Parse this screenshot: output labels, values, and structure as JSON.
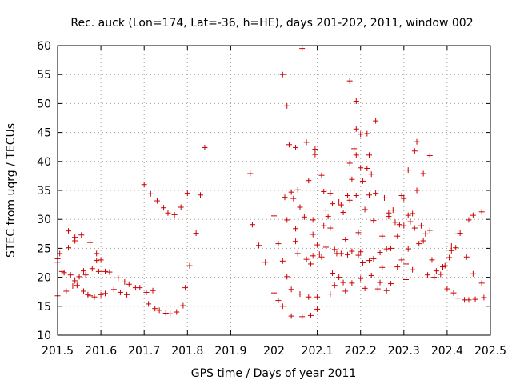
{
  "chart_data": {
    "type": "scatter",
    "title": "Rec. auck (Lon=174, Lat=-36, h=HE), days 201-202, 2011, window 002",
    "xlabel": "GPS time / Days of year 2011",
    "ylabel": "STEC from uqrg / TECUs",
    "xlim": [
      201.5,
      202.5
    ],
    "ylim": [
      10,
      60
    ],
    "xticks": [
      201.5,
      201.6,
      201.7,
      201.8,
      201.9,
      202,
      202.1,
      202.2,
      202.3,
      202.4,
      202.5
    ],
    "xtick_labels": [
      "201.5",
      "201.6",
      "201.7",
      "201.8",
      "201.9",
      "202",
      "202.1",
      "202.2",
      "202.3",
      "202.4",
      "202.5"
    ],
    "yticks": [
      10,
      15,
      20,
      25,
      30,
      35,
      40,
      45,
      50,
      55,
      60
    ],
    "ytick_labels": [
      "10",
      "15",
      "20",
      "25",
      "30",
      "35",
      "40",
      "45",
      "50",
      "55",
      "60"
    ],
    "grid": true,
    "marker": "+",
    "color": "#cc0000",
    "series": [
      {
        "name": "STEC",
        "points": [
          [
            201.5,
            16.8
          ],
          [
            201.5,
            23.2
          ],
          [
            201.5,
            22.6
          ],
          [
            201.505,
            24.1
          ],
          [
            201.51,
            21.0
          ],
          [
            201.515,
            20.8
          ],
          [
            201.52,
            17.6
          ],
          [
            201.525,
            28.0
          ],
          [
            201.525,
            25.1
          ],
          [
            201.53,
            20.4
          ],
          [
            201.535,
            18.5
          ],
          [
            201.54,
            26.9
          ],
          [
            201.54,
            26.3
          ],
          [
            201.54,
            19.4
          ],
          [
            201.545,
            18.6
          ],
          [
            201.55,
            20.1
          ],
          [
            201.555,
            27.3
          ],
          [
            201.56,
            21.1
          ],
          [
            201.56,
            17.6
          ],
          [
            201.565,
            20.4
          ],
          [
            201.57,
            17.0
          ],
          [
            201.575,
            26.0
          ],
          [
            201.575,
            16.8
          ],
          [
            201.58,
            21.5
          ],
          [
            201.585,
            16.6
          ],
          [
            201.59,
            24.1
          ],
          [
            201.59,
            22.9
          ],
          [
            201.595,
            21.0
          ],
          [
            201.6,
            23.0
          ],
          [
            201.6,
            17.0
          ],
          [
            201.61,
            21.0
          ],
          [
            201.61,
            17.2
          ],
          [
            201.62,
            20.9
          ],
          [
            201.63,
            17.9
          ],
          [
            201.64,
            19.9
          ],
          [
            201.645,
            17.4
          ],
          [
            201.655,
            19.2
          ],
          [
            201.66,
            17.0
          ],
          [
            201.665,
            18.8
          ],
          [
            201.68,
            18.2
          ],
          [
            201.69,
            18.2
          ],
          [
            201.7,
            36.0
          ],
          [
            201.705,
            17.4
          ],
          [
            201.71,
            15.4
          ],
          [
            201.715,
            34.4
          ],
          [
            201.72,
            17.7
          ],
          [
            201.725,
            14.6
          ],
          [
            201.73,
            33.2
          ],
          [
            201.735,
            14.3
          ],
          [
            201.745,
            32.0
          ],
          [
            201.75,
            13.8
          ],
          [
            201.755,
            31.1
          ],
          [
            201.76,
            13.7
          ],
          [
            201.77,
            30.8
          ],
          [
            201.775,
            14.0
          ],
          [
            201.785,
            32.1
          ],
          [
            201.79,
            15.1
          ],
          [
            201.795,
            18.2
          ],
          [
            201.8,
            34.5
          ],
          [
            201.805,
            22.0
          ],
          [
            201.82,
            27.6
          ],
          [
            201.83,
            34.2
          ],
          [
            201.84,
            42.4
          ],
          [
            201.945,
            37.9
          ],
          [
            201.95,
            29.1
          ],
          [
            201.965,
            25.5
          ],
          [
            201.98,
            22.6
          ],
          [
            202.0,
            30.6
          ],
          [
            202.0,
            17.3
          ],
          [
            202.01,
            25.8
          ],
          [
            202.01,
            16.0
          ],
          [
            202.02,
            55.0
          ],
          [
            202.02,
            22.8
          ],
          [
            202.02,
            15.0
          ],
          [
            202.025,
            33.8
          ],
          [
            202.03,
            49.6
          ],
          [
            202.03,
            29.9
          ],
          [
            202.03,
            20.1
          ],
          [
            202.035,
            42.9
          ],
          [
            202.04,
            34.7
          ],
          [
            202.04,
            17.9
          ],
          [
            202.04,
            13.3
          ],
          [
            202.045,
            33.6
          ],
          [
            202.05,
            28.4
          ],
          [
            202.05,
            26.2
          ],
          [
            202.05,
            42.4
          ],
          [
            202.055,
            35.1
          ],
          [
            202.055,
            24.1
          ],
          [
            202.06,
            32.1
          ],
          [
            202.06,
            17.1
          ],
          [
            202.065,
            59.5
          ],
          [
            202.065,
            13.2
          ],
          [
            202.07,
            30.4
          ],
          [
            202.075,
            23.1
          ],
          [
            202.075,
            43.3
          ],
          [
            202.08,
            36.7
          ],
          [
            202.08,
            16.6
          ],
          [
            202.085,
            22.3
          ],
          [
            202.085,
            13.4
          ],
          [
            202.09,
            29.9
          ],
          [
            202.09,
            27.4
          ],
          [
            202.09,
            23.7
          ],
          [
            202.095,
            42.1
          ],
          [
            202.095,
            41.2
          ],
          [
            202.1,
            25.6
          ],
          [
            202.1,
            16.6
          ],
          [
            202.1,
            14.5
          ],
          [
            202.105,
            24.0
          ],
          [
            202.11,
            37.6
          ],
          [
            202.11,
            23.5
          ],
          [
            202.115,
            34.8
          ],
          [
            202.115,
            28.9
          ],
          [
            202.12,
            31.6
          ],
          [
            202.12,
            25.2
          ],
          [
            202.125,
            30.5
          ],
          [
            202.13,
            34.5
          ],
          [
            202.13,
            28.5
          ],
          [
            202.13,
            17.1
          ],
          [
            202.135,
            32.7
          ],
          [
            202.135,
            20.7
          ],
          [
            202.14,
            24.8
          ],
          [
            202.14,
            18.6
          ],
          [
            202.145,
            24.1
          ],
          [
            202.15,
            33.0
          ],
          [
            202.15,
            20.0
          ],
          [
            202.155,
            32.5
          ],
          [
            202.155,
            24.1
          ],
          [
            202.16,
            31.2
          ],
          [
            202.16,
            19.1
          ],
          [
            202.165,
            26.5
          ],
          [
            202.165,
            17.6
          ],
          [
            202.17,
            34.1
          ],
          [
            202.17,
            23.9
          ],
          [
            202.175,
            53.9
          ],
          [
            202.175,
            39.7
          ],
          [
            202.175,
            33.3
          ],
          [
            202.18,
            36.9
          ],
          [
            202.18,
            24.5
          ],
          [
            202.18,
            19.0
          ],
          [
            202.185,
            42.2
          ],
          [
            202.19,
            50.4
          ],
          [
            202.19,
            45.6
          ],
          [
            202.19,
            41.1
          ],
          [
            202.19,
            34.1
          ],
          [
            202.195,
            27.7
          ],
          [
            202.195,
            23.8
          ],
          [
            202.2,
            44.7
          ],
          [
            202.2,
            38.9
          ],
          [
            202.2,
            24.4
          ],
          [
            202.2,
            19.8
          ],
          [
            202.205,
            36.6
          ],
          [
            202.205,
            22.5
          ],
          [
            202.21,
            31.7
          ],
          [
            202.21,
            18.1
          ],
          [
            202.215,
            44.8
          ],
          [
            202.215,
            38.8
          ],
          [
            202.22,
            41.1
          ],
          [
            202.22,
            34.2
          ],
          [
            202.22,
            22.9
          ],
          [
            202.225,
            37.8
          ],
          [
            202.225,
            20.3
          ],
          [
            202.23,
            29.8
          ],
          [
            202.23,
            23.2
          ],
          [
            202.235,
            47.0
          ],
          [
            202.235,
            34.5
          ],
          [
            202.24,
            18.0
          ],
          [
            202.245,
            24.3
          ],
          [
            202.245,
            19.1
          ],
          [
            202.25,
            27.1
          ],
          [
            202.25,
            21.7
          ],
          [
            202.255,
            33.7
          ],
          [
            202.26,
            24.9
          ],
          [
            202.26,
            17.7
          ],
          [
            202.265,
            31.1
          ],
          [
            202.265,
            30.5
          ],
          [
            202.27,
            25.0
          ],
          [
            202.27,
            18.9
          ],
          [
            202.275,
            31.6
          ],
          [
            202.28,
            29.5
          ],
          [
            202.285,
            27.1
          ],
          [
            202.285,
            21.8
          ],
          [
            202.29,
            29.1
          ],
          [
            202.295,
            34.1
          ],
          [
            202.295,
            23.0
          ],
          [
            202.3,
            33.6
          ],
          [
            202.3,
            28.9
          ],
          [
            202.305,
            22.3
          ],
          [
            202.305,
            19.6
          ],
          [
            202.31,
            38.5
          ],
          [
            202.31,
            30.7
          ],
          [
            202.31,
            24.9
          ],
          [
            202.315,
            29.6
          ],
          [
            202.32,
            31.0
          ],
          [
            202.32,
            21.3
          ],
          [
            202.325,
            41.8
          ],
          [
            202.325,
            28.5
          ],
          [
            202.33,
            43.4
          ],
          [
            202.33,
            35.0
          ],
          [
            202.335,
            25.8
          ],
          [
            202.34,
            28.9
          ],
          [
            202.345,
            37.9
          ],
          [
            202.345,
            26.3
          ],
          [
            202.35,
            27.5
          ],
          [
            202.355,
            20.4
          ],
          [
            202.36,
            41.0
          ],
          [
            202.36,
            28.1
          ],
          [
            202.365,
            23.0
          ],
          [
            202.37,
            20.0
          ],
          [
            202.375,
            21.1
          ],
          [
            202.385,
            20.5
          ],
          [
            202.39,
            21.8
          ],
          [
            202.395,
            22.0
          ],
          [
            202.4,
            18.0
          ],
          [
            202.405,
            23.4
          ],
          [
            202.41,
            24.6
          ],
          [
            202.41,
            25.4
          ],
          [
            202.415,
            17.3
          ],
          [
            202.42,
            25.1
          ],
          [
            202.425,
            27.5
          ],
          [
            202.425,
            16.4
          ],
          [
            202.43,
            27.6
          ],
          [
            202.44,
            16.1
          ],
          [
            202.445,
            23.5
          ],
          [
            202.45,
            29.9
          ],
          [
            202.45,
            16.1
          ],
          [
            202.46,
            30.7
          ],
          [
            202.46,
            20.6
          ],
          [
            202.465,
            16.2
          ],
          [
            202.48,
            31.3
          ],
          [
            202.48,
            19.0
          ],
          [
            202.485,
            16.5
          ]
        ]
      }
    ]
  }
}
